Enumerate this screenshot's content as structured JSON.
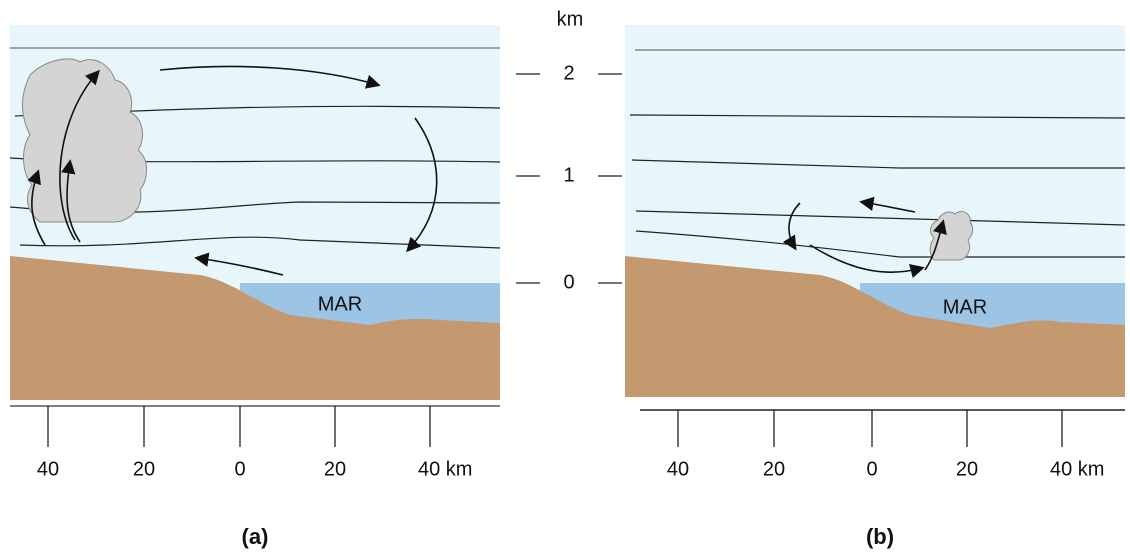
{
  "height_axis": {
    "unit": "km",
    "ticks": [
      "2",
      "1",
      "0"
    ]
  },
  "panels": [
    {
      "label": "(a)",
      "sea_label": "MAR",
      "x_ticks": [
        "40",
        "20",
        "0",
        "20",
        "40 km"
      ]
    },
    {
      "label": "(b)",
      "sea_label": "MAR",
      "x_ticks": [
        "40",
        "20",
        "0",
        "20",
        "40 km"
      ]
    }
  ]
}
